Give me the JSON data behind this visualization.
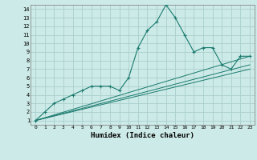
{
  "xlabel": "Humidex (Indice chaleur)",
  "background_color": "#cceae7",
  "grid_color": "#aacfcc",
  "line_color": "#1a7a6e",
  "xlim": [
    -0.5,
    23.5
  ],
  "ylim": [
    0.5,
    14.5
  ],
  "xticks": [
    0,
    1,
    2,
    3,
    4,
    5,
    6,
    7,
    8,
    9,
    10,
    11,
    12,
    13,
    14,
    15,
    16,
    17,
    18,
    19,
    20,
    21,
    22,
    23
  ],
  "yticks": [
    1,
    2,
    3,
    4,
    5,
    6,
    7,
    8,
    9,
    10,
    11,
    12,
    13,
    14
  ],
  "main_series": {
    "x": [
      0,
      1,
      2,
      3,
      4,
      5,
      6,
      7,
      8,
      9,
      10,
      11,
      12,
      13,
      14,
      15,
      16,
      17,
      18,
      19,
      20,
      21,
      22,
      23
    ],
    "y": [
      1,
      2,
      3,
      3.5,
      4,
      4.5,
      5,
      5,
      5,
      4.5,
      6,
      9.5,
      11.5,
      12.5,
      14.5,
      13,
      11,
      9,
      9.5,
      9.5,
      7.5,
      7,
      8.5,
      8.5
    ]
  },
  "trend_lines": [
    {
      "x": [
        0,
        23
      ],
      "y": [
        1,
        8.5
      ]
    },
    {
      "x": [
        0,
        23
      ],
      "y": [
        1,
        7.5
      ]
    },
    {
      "x": [
        0,
        23
      ],
      "y": [
        1,
        7.0
      ]
    }
  ]
}
